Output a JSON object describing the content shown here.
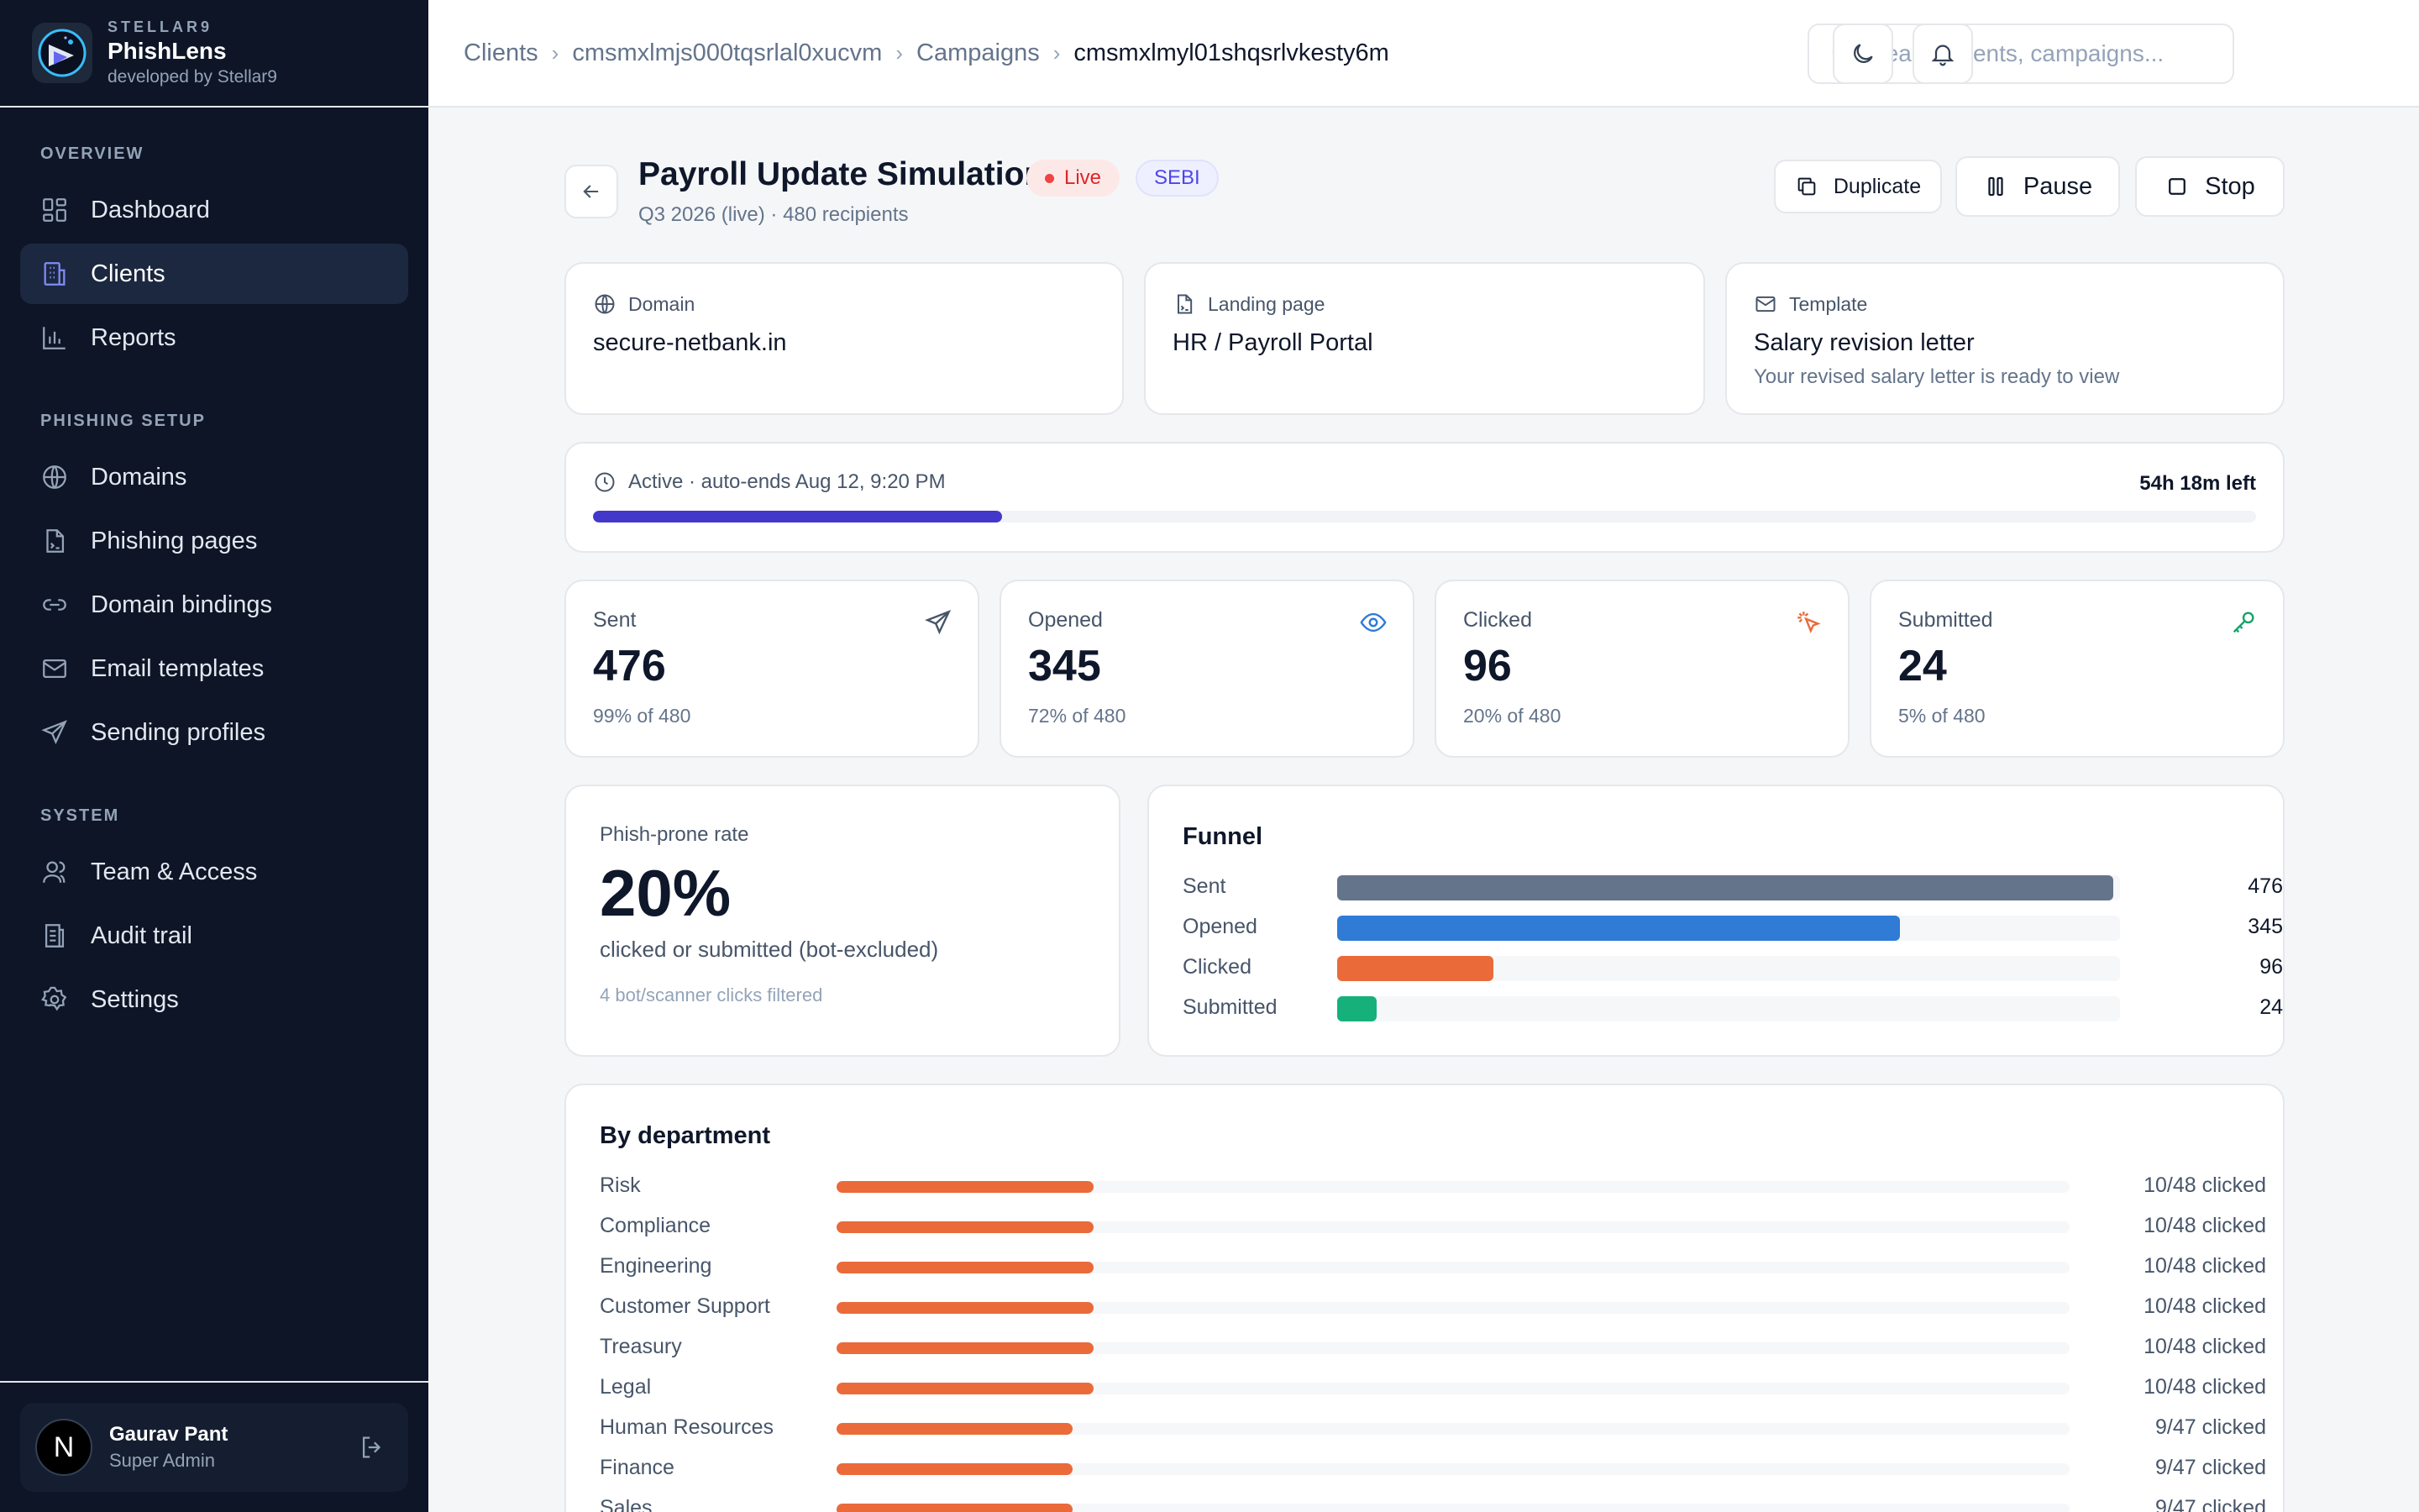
{
  "brand": {
    "company": "STELLAR9",
    "product": "PhishLens",
    "tagline": "developed by Stellar9"
  },
  "nav": {
    "overview_label": "OVERVIEW",
    "phishing_label": "PHISHING SETUP",
    "system_label": "SYSTEM",
    "items": [
      {
        "label": "Dashboard",
        "icon": "dashboard-icon"
      },
      {
        "label": "Clients",
        "icon": "building-icon",
        "active": true
      },
      {
        "label": "Reports",
        "icon": "bar-chart-icon"
      },
      {
        "label": "Domains",
        "icon": "globe-icon"
      },
      {
        "label": "Phishing pages",
        "icon": "file-icon"
      },
      {
        "label": "Domain bindings",
        "icon": "link-icon"
      },
      {
        "label": "Email templates",
        "icon": "mail-icon"
      },
      {
        "label": "Sending profiles",
        "icon": "send-icon"
      },
      {
        "label": "Team & Access",
        "icon": "users-icon"
      },
      {
        "label": "Audit trail",
        "icon": "audit-icon"
      },
      {
        "label": "Settings",
        "icon": "gear-icon"
      }
    ]
  },
  "user": {
    "initial": "N",
    "name": "Gaurav Pant",
    "role": "Super Admin"
  },
  "breadcrumb": [
    "Clients",
    "cmsmxlmjs000tqsrlal0xucvm",
    "Campaigns",
    "cmsmxlmyl01shqsrlvkesty6m"
  ],
  "search": {
    "placeholder": "Search clients, campaigns..."
  },
  "campaign": {
    "title": "Payroll Update Simulation",
    "status": "Live",
    "tag": "SEBI",
    "subtitle": "Q3 2026 (live) · 480 recipients",
    "actions": {
      "duplicate": "Duplicate",
      "pause": "Pause",
      "stop": "Stop"
    }
  },
  "info": {
    "domain": {
      "label": "Domain",
      "value": "secure-netbank.in"
    },
    "landing": {
      "label": "Landing page",
      "value": "HR / Payroll Portal"
    },
    "template": {
      "label": "Template",
      "value": "Salary revision letter",
      "sub": "Your revised salary letter is ready to view"
    }
  },
  "progress": {
    "status": "Active · auto-ends Aug 12, 9:20 PM",
    "remaining": "54h 18m left",
    "fraction": 0.246,
    "color": "#4338ca"
  },
  "stats": [
    {
      "label": "Sent",
      "value": "476",
      "sub": "99% of 480",
      "icon": "send-icon",
      "color": "#475569"
    },
    {
      "label": "Opened",
      "value": "345",
      "sub": "72% of 480",
      "icon": "eye-icon",
      "color": "#2f7bd6"
    },
    {
      "label": "Clicked",
      "value": "96",
      "sub": "20% of 480",
      "icon": "pointer-click-icon",
      "color": "#ea6a3a"
    },
    {
      "label": "Submitted",
      "value": "24",
      "sub": "5% of 480",
      "icon": "key-icon",
      "color": "#16a36a"
    }
  ],
  "rate": {
    "label": "Phish-prone rate",
    "value": "20%",
    "sub": "clicked or submitted (bot-excluded)",
    "note": "4 bot/scanner clicks filtered"
  },
  "funnel": {
    "title": "Funnel",
    "max": 480,
    "rows": [
      {
        "label": "Sent",
        "value": 476,
        "display": "476",
        "color": "#64748b"
      },
      {
        "label": "Opened",
        "value": 345,
        "display": "345",
        "color": "#2f7bd6"
      },
      {
        "label": "Clicked",
        "value": 96,
        "display": "96",
        "color": "#ea6a3a"
      },
      {
        "label": "Submitted",
        "value": 24,
        "display": "24",
        "color": "#16b07a"
      }
    ]
  },
  "departments": {
    "title": "By department",
    "rows": [
      {
        "label": "Risk",
        "clicked": 10,
        "total": 48,
        "display": "10/48 clicked"
      },
      {
        "label": "Compliance",
        "clicked": 10,
        "total": 48,
        "display": "10/48 clicked"
      },
      {
        "label": "Engineering",
        "clicked": 10,
        "total": 48,
        "display": "10/48 clicked"
      },
      {
        "label": "Customer Support",
        "clicked": 10,
        "total": 48,
        "display": "10/48 clicked"
      },
      {
        "label": "Treasury",
        "clicked": 10,
        "total": 48,
        "display": "10/48 clicked"
      },
      {
        "label": "Legal",
        "clicked": 10,
        "total": 48,
        "display": "10/48 clicked"
      },
      {
        "label": "Human Resources",
        "clicked": 9,
        "total": 47,
        "display": "9/47 clicked"
      },
      {
        "label": "Finance",
        "clicked": 9,
        "total": 47,
        "display": "9/47 clicked"
      },
      {
        "label": "Sales",
        "clicked": 9,
        "total": 47,
        "display": "9/47 clicked"
      }
    ]
  }
}
